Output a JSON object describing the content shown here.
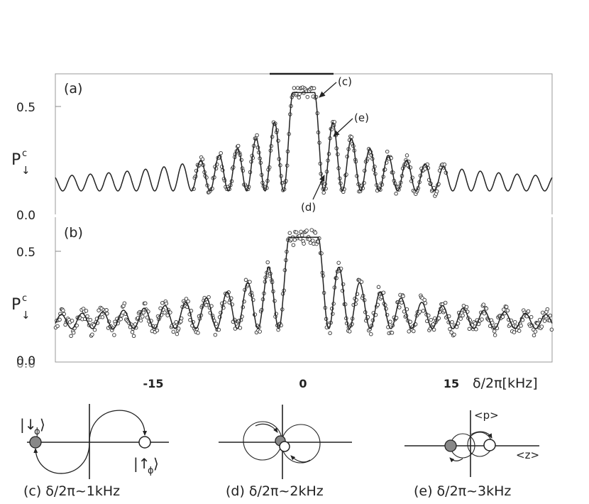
{
  "panels": {
    "a": {
      "label": "(a)"
    },
    "b": {
      "label": "(b)"
    }
  },
  "yaxis": {
    "symbol": "P",
    "superscript": "c",
    "subscript": "↓",
    "ticks_a": [
      "0.5",
      "0.0"
    ],
    "ticks_b": [
      "0.5",
      "0.0"
    ],
    "ticks_b_extra": "0.0"
  },
  "xaxis": {
    "ticks": [
      "-15",
      "0",
      "15"
    ],
    "label": "δ/2π[kHz]"
  },
  "annotations": {
    "c": "(c)",
    "d": "(d)",
    "e": "(e)"
  },
  "insets": {
    "c": {
      "caption": "(c) δ/2π~1kHz",
      "state_left": "|↓",
      "state_left_sub": "ϕ",
      "state_right": "|↑",
      "state_right_sub": "ϕ"
    },
    "d": {
      "caption": "(d) δ/2π~2kHz"
    },
    "e": {
      "caption": "(e) δ/2π~3kHz",
      "axis_p": "<p>",
      "axis_z": "<z>"
    }
  },
  "chart_data": [
    {
      "type": "scatter",
      "panel": "a",
      "xlim": [
        -27,
        27
      ],
      "ylim": [
        0,
        0.6
      ],
      "baseline": 0.1,
      "plateau": 0.52,
      "plateau_halfwidth_khz": 1.2,
      "fringe_period_khz": 2.0,
      "measured_x_range": [
        -12,
        15.5
      ],
      "curve": "fit",
      "markers": "open circles"
    },
    {
      "type": "scatter",
      "panel": "b",
      "xlim": [
        -27,
        27
      ],
      "ylim": [
        0,
        0.65
      ],
      "baseline": 0.15,
      "plateau": 0.56,
      "plateau_halfwidth_khz": 1.6,
      "fringe_period_khz": 2.25,
      "measured_x_range": [
        -27,
        27
      ],
      "curve": "fit",
      "markers": "open circles"
    }
  ]
}
